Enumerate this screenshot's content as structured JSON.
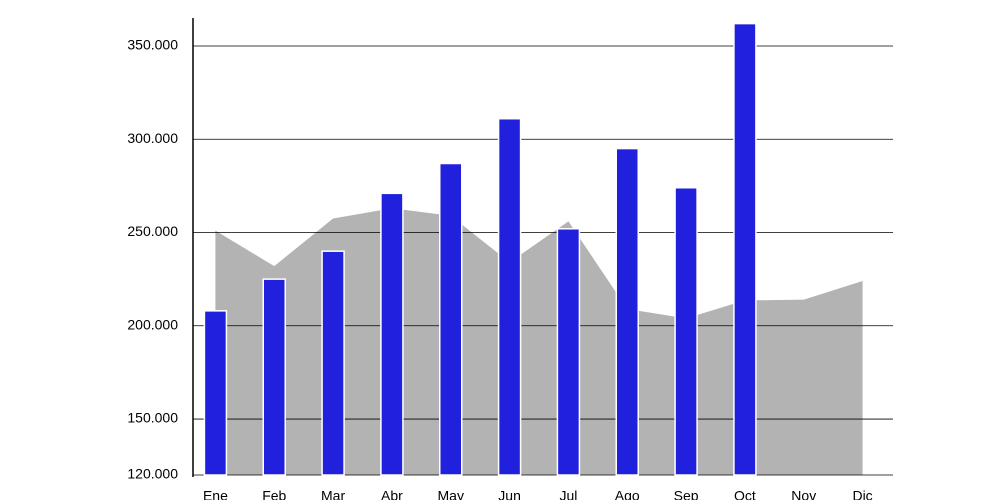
{
  "chart_data": {
    "type": "bar",
    "categories": [
      "Ene",
      "Feb",
      "Mar",
      "Abr",
      "May",
      "Jun",
      "Jul",
      "Ago",
      "Sep",
      "Oct",
      "Nov",
      "Dic"
    ],
    "series": [
      {
        "type": "area",
        "color": "#b3b3b3",
        "values": [
          251000,
          232000,
          257500,
          263000,
          259000,
          234000,
          256000,
          209000,
          204000,
          213600,
          214000,
          224000
        ]
      },
      {
        "type": "bar",
        "color": "#2121dd",
        "values": [
          208000,
          225000,
          240000,
          271000,
          287000,
          311000,
          252000,
          295000,
          274000,
          362000,
          null,
          null
        ]
      }
    ],
    "ylim": [
      120000,
      365000
    ],
    "yticks": [
      {
        "value": 120000,
        "label": "120.000"
      },
      {
        "value": 150000,
        "label": "150.000"
      },
      {
        "value": 200000,
        "label": "200.000"
      },
      {
        "value": 250000,
        "label": "250.000"
      },
      {
        "value": 300000,
        "label": "300.000"
      },
      {
        "value": 350000,
        "label": "350.000"
      }
    ],
    "grid": true
  }
}
